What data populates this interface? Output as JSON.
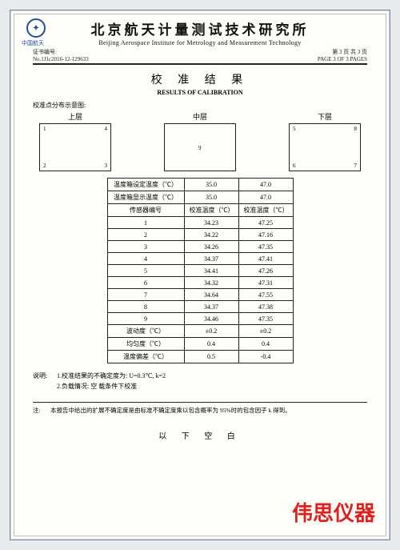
{
  "header": {
    "title_cn": "北京航天计量测试技术研究所",
    "title_en": "Beijing Aerospace Institute for Metrology and Measurement Technology",
    "logo_sub": "中国航天",
    "cert_label": "证书编号:",
    "cert_no": "No.1J1c2016-12-129633",
    "page_cn": "第 3 页 共 3 页",
    "page_en": "PAGE 3 OF 3 PAGES"
  },
  "section": {
    "title_cn": "校 准 结 果",
    "title_en": "RESULTS OF CALIBRATION",
    "schematic_label": "校准点分布示意图:"
  },
  "layers": {
    "top": {
      "title": "上层",
      "tl": "1",
      "tr": "4",
      "bl": "2",
      "br": "3"
    },
    "mid": {
      "title": "中层",
      "c": "9"
    },
    "bot": {
      "title": "下层",
      "tl": "5",
      "tr": "8",
      "bl": "6",
      "br": "7"
    }
  },
  "table": {
    "row_set_temp": {
      "label": "温度箱设定温度（℃）",
      "c1": "35.0",
      "c2": "47.0"
    },
    "row_disp_temp": {
      "label": "温度箱显示温度（℃）",
      "c1": "35.0",
      "c2": "47.0"
    },
    "row_sensor_hdr": {
      "label": "传感器编号",
      "c1": "校准温度（℃）",
      "c2": "校准温度（℃）"
    },
    "sensors": [
      {
        "n": "1",
        "c1": "34.23",
        "c2": "47.25"
      },
      {
        "n": "2",
        "c1": "34.22",
        "c2": "47.16"
      },
      {
        "n": "3",
        "c1": "34.26",
        "c2": "47.35"
      },
      {
        "n": "4",
        "c1": "34.37",
        "c2": "47.41"
      },
      {
        "n": "5",
        "c1": "34.41",
        "c2": "47.26"
      },
      {
        "n": "6",
        "c1": "34.32",
        "c2": "47.31"
      },
      {
        "n": "7",
        "c1": "34.64",
        "c2": "47.55"
      },
      {
        "n": "8",
        "c1": "34.37",
        "c2": "47.38"
      },
      {
        "n": "9",
        "c1": "34.46",
        "c2": "47.35"
      }
    ],
    "row_fluct": {
      "label": "波动度（℃）",
      "c1": "±0.2",
      "c2": "±0.2"
    },
    "row_unif": {
      "label": "均匀度（℃）",
      "c1": "0.4",
      "c2": "0.4"
    },
    "row_dev": {
      "label": "温度偏差（℃）",
      "c1": "0.5",
      "c2": "-0.4"
    }
  },
  "notes": {
    "label": "说明:",
    "line1": "1.校准结果的不确定度为: U=0.3℃, k=2",
    "line2": "2.负载情况: 空 载条件下校准"
  },
  "footnote": {
    "label": "注:",
    "text": "本报告中给出的扩展不确定度是由标准不确定度乘以包含概率为 95%时的包含因子 k 得到。"
  },
  "blank_below": "以 下 空 白",
  "watermark": "伟思仪器",
  "colors": {
    "page_bg": "#fdfef8",
    "body_bg": "#e8ebed",
    "border": "#222222",
    "logo": "#2a4aa0",
    "watermark": "#e02020"
  }
}
